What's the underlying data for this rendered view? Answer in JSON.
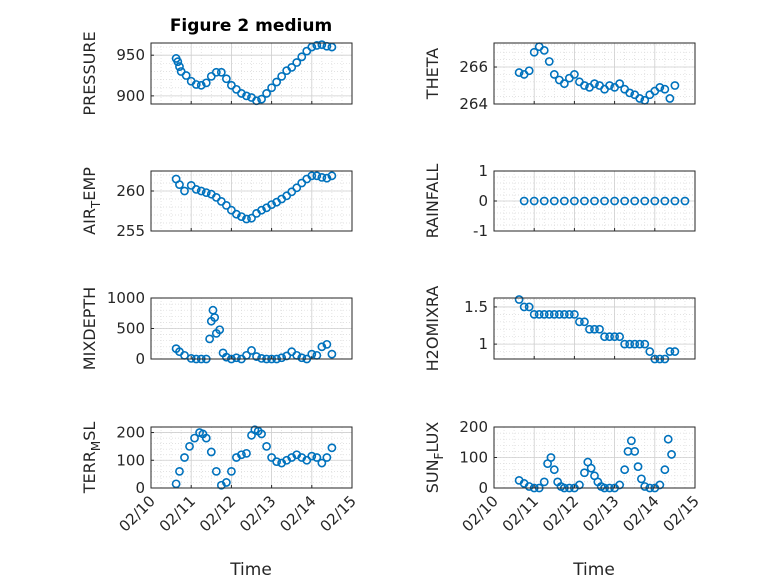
{
  "figure": {
    "title": "Figure 2 medium",
    "xlabel": "Time"
  },
  "chart_data": [
    {
      "type": "scatter",
      "ylabel": "PRESSURE",
      "ylim": [
        890,
        965
      ],
      "yticks": [
        900,
        950
      ],
      "xlim": [
        "02/10",
        "02/15"
      ],
      "marker_color": "#0072BD",
      "x": [
        "02/10 15:00",
        "02/10 16:00",
        "02/10 17:00",
        "02/10 18:00",
        "02/10 21:00",
        "02/11 00:00",
        "02/11 03:00",
        "02/11 06:00",
        "02/11 09:00",
        "02/11 12:00",
        "02/11 15:00",
        "02/11 18:00",
        "02/11 21:00",
        "02/12 00:00",
        "02/12 03:00",
        "02/12 06:00",
        "02/12 09:00",
        "02/12 12:00",
        "02/12 15:00",
        "02/12 18:00",
        "02/12 21:00",
        "02/13 00:00",
        "02/13 03:00",
        "02/13 06:00",
        "02/13 09:00",
        "02/13 12:00",
        "02/13 15:00",
        "02/13 18:00",
        "02/13 21:00",
        "02/14 00:00",
        "02/14 03:00",
        "02/14 06:00",
        "02/14 09:00",
        "02/14 12:00"
      ],
      "y": [
        946,
        942,
        936,
        930,
        925,
        918,
        914,
        913,
        916,
        924,
        929,
        929,
        921,
        913,
        908,
        903,
        900,
        898,
        894,
        896,
        903,
        910,
        917,
        924,
        931,
        935,
        941,
        948,
        955,
        960,
        962,
        963,
        961,
        960
      ]
    },
    {
      "type": "scatter",
      "ylabel": "THETA",
      "ylim": [
        264,
        267.3
      ],
      "yticks": [
        264,
        266
      ],
      "xlim": [
        "02/10",
        "02/15"
      ],
      "marker_color": "#0072BD",
      "x": [
        "02/10 15:00",
        "02/10 18:00",
        "02/10 21:00",
        "02/11 00:00",
        "02/11 03:00",
        "02/11 06:00",
        "02/11 09:00",
        "02/11 12:00",
        "02/11 15:00",
        "02/11 18:00",
        "02/11 21:00",
        "02/12 00:00",
        "02/12 03:00",
        "02/12 06:00",
        "02/12 09:00",
        "02/12 12:00",
        "02/12 15:00",
        "02/12 18:00",
        "02/12 21:00",
        "02/13 00:00",
        "02/13 03:00",
        "02/13 06:00",
        "02/13 09:00",
        "02/13 12:00",
        "02/13 15:00",
        "02/13 18:00",
        "02/13 21:00",
        "02/14 00:00",
        "02/14 03:00",
        "02/14 06:00",
        "02/14 09:00",
        "02/14 12:00"
      ],
      "y": [
        265.7,
        265.6,
        265.8,
        266.8,
        267.1,
        266.9,
        266.3,
        265.6,
        265.3,
        265.1,
        265.4,
        265.6,
        265.2,
        265.0,
        264.9,
        265.1,
        265.0,
        264.8,
        265.0,
        264.9,
        265.1,
        264.8,
        264.6,
        264.5,
        264.3,
        264.2,
        264.5,
        264.7,
        264.9,
        264.8,
        264.3,
        265.0
      ]
    },
    {
      "type": "scatter",
      "ylabel": "AIR_TEMP",
      "ylim": [
        255,
        262.5
      ],
      "yticks": [
        255,
        260
      ],
      "xlim": [
        "02/10",
        "02/15"
      ],
      "marker_color": "#0072BD",
      "x": [
        "02/10 15:00",
        "02/10 17:00",
        "02/10 20:00",
        "02/11 00:00",
        "02/11 03:00",
        "02/11 06:00",
        "02/11 09:00",
        "02/11 12:00",
        "02/11 15:00",
        "02/11 18:00",
        "02/11 21:00",
        "02/12 00:00",
        "02/12 03:00",
        "02/12 06:00",
        "02/12 09:00",
        "02/12 12:00",
        "02/12 15:00",
        "02/12 18:00",
        "02/12 21:00",
        "02/13 00:00",
        "02/13 03:00",
        "02/13 06:00",
        "02/13 09:00",
        "02/13 12:00",
        "02/13 15:00",
        "02/13 18:00",
        "02/13 21:00",
        "02/14 00:00",
        "02/14 03:00",
        "02/14 06:00",
        "02/14 09:00",
        "02/14 12:00"
      ],
      "y": [
        261.5,
        260.8,
        260.0,
        260.7,
        260.2,
        260.0,
        259.8,
        259.6,
        259.2,
        258.7,
        258.2,
        257.6,
        257.1,
        256.8,
        256.5,
        256.6,
        257.2,
        257.6,
        257.9,
        258.3,
        258.6,
        259.0,
        259.4,
        259.9,
        260.4,
        261.0,
        261.5,
        261.9,
        261.9,
        261.7,
        261.6,
        261.9
      ]
    },
    {
      "type": "scatter",
      "ylabel": "RAINFALL",
      "ylim": [
        -1,
        1
      ],
      "yticks": [
        -1,
        0,
        1
      ],
      "xlim": [
        "02/10",
        "02/15"
      ],
      "marker_color": "#0072BD",
      "x": [
        "02/10 18:00",
        "02/11 00:00",
        "02/11 06:00",
        "02/11 12:00",
        "02/11 18:00",
        "02/12 00:00",
        "02/12 06:00",
        "02/12 12:00",
        "02/12 18:00",
        "02/13 00:00",
        "02/13 06:00",
        "02/13 12:00",
        "02/13 18:00",
        "02/14 00:00",
        "02/14 06:00",
        "02/14 12:00",
        "02/14 18:00"
      ],
      "y": [
        0,
        0,
        0,
        0,
        0,
        0,
        0,
        0,
        0,
        0,
        0,
        0,
        0,
        0,
        0,
        0,
        0
      ]
    },
    {
      "type": "scatter",
      "ylabel": "MIXDEPTH",
      "ylim": [
        0,
        1000
      ],
      "yticks": [
        0,
        500,
        1000
      ],
      "xlim": [
        "02/10",
        "02/15"
      ],
      "marker_color": "#0072BD",
      "x": [
        "02/10 15:00",
        "02/10 17:00",
        "02/10 20:00",
        "02/11 00:00",
        "02/11 03:00",
        "02/11 06:00",
        "02/11 09:00",
        "02/11 11:00",
        "02/11 12:00",
        "02/11 13:00",
        "02/11 14:00",
        "02/11 15:00",
        "02/11 17:00",
        "02/11 19:00",
        "02/11 21:00",
        "02/12 00:00",
        "02/12 03:00",
        "02/12 06:00",
        "02/12 09:00",
        "02/12 12:00",
        "02/12 15:00",
        "02/12 18:00",
        "02/12 21:00",
        "02/13 00:00",
        "02/13 03:00",
        "02/13 06:00",
        "02/13 09:00",
        "02/13 12:00",
        "02/13 15:00",
        "02/13 18:00",
        "02/13 21:00",
        "02/14 00:00",
        "02/14 03:00",
        "02/14 06:00",
        "02/14 09:00",
        "02/14 12:00"
      ],
      "y": [
        170,
        120,
        60,
        10,
        0,
        0,
        0,
        330,
        620,
        800,
        680,
        420,
        480,
        100,
        30,
        0,
        20,
        0,
        60,
        140,
        40,
        10,
        0,
        0,
        0,
        20,
        50,
        120,
        60,
        20,
        0,
        80,
        60,
        200,
        240,
        80
      ]
    },
    {
      "type": "scatter",
      "ylabel": "H2OMIXRA",
      "ylim": [
        0.8,
        1.62
      ],
      "yticks": [
        1,
        1.5
      ],
      "xlim": [
        "02/10",
        "02/15"
      ],
      "marker_color": "#0072BD",
      "x": [
        "02/10 15:00",
        "02/10 18:00",
        "02/10 21:00",
        "02/11 00:00",
        "02/11 03:00",
        "02/11 06:00",
        "02/11 09:00",
        "02/11 12:00",
        "02/11 15:00",
        "02/11 18:00",
        "02/11 21:00",
        "02/12 00:00",
        "02/12 03:00",
        "02/12 06:00",
        "02/12 09:00",
        "02/12 12:00",
        "02/12 15:00",
        "02/12 18:00",
        "02/12 21:00",
        "02/13 00:00",
        "02/13 03:00",
        "02/13 06:00",
        "02/13 09:00",
        "02/13 12:00",
        "02/13 15:00",
        "02/13 18:00",
        "02/13 21:00",
        "02/14 00:00",
        "02/14 03:00",
        "02/14 06:00",
        "02/14 09:00",
        "02/14 12:00"
      ],
      "y": [
        1.6,
        1.5,
        1.5,
        1.4,
        1.4,
        1.4,
        1.4,
        1.4,
        1.4,
        1.4,
        1.4,
        1.4,
        1.3,
        1.3,
        1.2,
        1.2,
        1.2,
        1.1,
        1.1,
        1.1,
        1.1,
        1.0,
        1.0,
        1.0,
        1.0,
        1.0,
        0.9,
        0.8,
        0.8,
        0.8,
        0.9,
        0.9
      ]
    },
    {
      "type": "scatter",
      "ylabel": "TERR_MSL",
      "ylim": [
        0,
        220
      ],
      "yticks": [
        0,
        100,
        200
      ],
      "xlim": [
        "02/10",
        "02/15"
      ],
      "marker_color": "#0072BD",
      "x": [
        "02/10 15:00",
        "02/10 17:00",
        "02/10 20:00",
        "02/10 23:00",
        "02/11 02:00",
        "02/11 05:00",
        "02/11 07:00",
        "02/11 09:00",
        "02/11 12:00",
        "02/11 15:00",
        "02/11 18:00",
        "02/11 21:00",
        "02/12 00:00",
        "02/12 03:00",
        "02/12 06:00",
        "02/12 09:00",
        "02/12 12:00",
        "02/12 14:00",
        "02/12 16:00",
        "02/12 18:00",
        "02/12 21:00",
        "02/13 00:00",
        "02/13 03:00",
        "02/13 06:00",
        "02/13 09:00",
        "02/13 12:00",
        "02/13 15:00",
        "02/13 18:00",
        "02/13 21:00",
        "02/14 00:00",
        "02/14 03:00",
        "02/14 06:00",
        "02/14 09:00",
        "02/14 12:00"
      ],
      "y": [
        15,
        60,
        110,
        150,
        180,
        200,
        195,
        180,
        130,
        60,
        10,
        20,
        60,
        110,
        120,
        125,
        190,
        210,
        205,
        195,
        150,
        110,
        95,
        90,
        100,
        110,
        120,
        110,
        100,
        115,
        110,
        90,
        110,
        145
      ]
    },
    {
      "type": "scatter",
      "ylabel": "SUN_FLUX",
      "ylim": [
        0,
        200
      ],
      "yticks": [
        0,
        100,
        200
      ],
      "xlim": [
        "02/10",
        "02/15"
      ],
      "marker_color": "#0072BD",
      "x": [
        "02/10 15:00",
        "02/10 18:00",
        "02/10 21:00",
        "02/11 00:00",
        "02/11 03:00",
        "02/11 06:00",
        "02/11 08:00",
        "02/11 10:00",
        "02/11 12:00",
        "02/11 14:00",
        "02/11 16:00",
        "02/11 18:00",
        "02/11 21:00",
        "02/12 00:00",
        "02/12 03:00",
        "02/12 06:00",
        "02/12 08:00",
        "02/12 10:00",
        "02/12 12:00",
        "02/12 14:00",
        "02/12 16:00",
        "02/12 18:00",
        "02/12 21:00",
        "02/13 00:00",
        "02/13 03:00",
        "02/13 06:00",
        "02/13 08:00",
        "02/13 10:00",
        "02/13 12:00",
        "02/13 14:00",
        "02/13 16:00",
        "02/13 18:00",
        "02/13 21:00",
        "02/14 00:00",
        "02/14 03:00",
        "02/14 06:00",
        "02/14 08:00",
        "02/14 10:00"
      ],
      "y": [
        25,
        15,
        5,
        0,
        0,
        20,
        80,
        100,
        60,
        20,
        5,
        0,
        0,
        0,
        10,
        50,
        85,
        65,
        40,
        20,
        5,
        0,
        0,
        0,
        10,
        60,
        120,
        155,
        120,
        70,
        30,
        5,
        0,
        0,
        10,
        60,
        160,
        110
      ]
    }
  ]
}
